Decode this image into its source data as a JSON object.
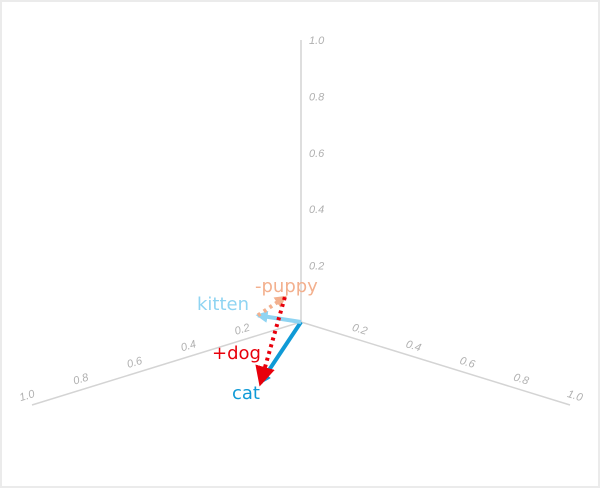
{
  "axes": {
    "ticks": [
      "0.2",
      "0.4",
      "0.6",
      "0.8",
      "1.0"
    ],
    "tick_values": [
      0.2,
      0.4,
      0.6,
      0.8,
      1.0
    ],
    "color": "#d4d4d4"
  },
  "vectors": [
    {
      "label": "cat",
      "from": [
        0,
        0,
        0
      ],
      "to": [
        0.29,
        0.44,
        0
      ],
      "color": "#0f9ad6",
      "style": "solid"
    },
    {
      "label": "kitten",
      "from": [
        0,
        0,
        0
      ],
      "to": [
        0.05,
        0.21,
        0.1
      ],
      "color": "#8fd4f2",
      "style": "solid"
    },
    {
      "label": "-puppy",
      "from": [
        0.05,
        0.21,
        0.1
      ],
      "to": [
        0.16,
        0.22,
        0.2
      ],
      "color": "#f3b08e",
      "style": "dotted"
    },
    {
      "label": "+dog",
      "from": [
        0.16,
        0.22,
        0.2
      ],
      "to": [
        0.29,
        0.44,
        0
      ],
      "color": "#e8000b",
      "style": "dotted"
    }
  ]
}
